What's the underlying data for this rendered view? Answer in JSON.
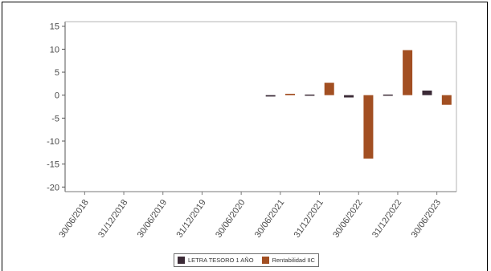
{
  "chart_data": {
    "type": "bar",
    "categories": [
      "30/06/2018",
      "31/12/2018",
      "30/06/2019",
      "31/12/2019",
      "30/06/2020",
      "30/06/2021",
      "31/12/2021",
      "30/06/2022",
      "31/12/2022",
      "30/06/2023"
    ],
    "ylim": [
      -21,
      16
    ],
    "yticks": [
      15,
      10,
      5,
      0,
      -5,
      -10,
      -15,
      -20
    ],
    "grid": false,
    "legend_position": "bottom",
    "series": [
      {
        "name": "LETRA TESORO 1 AÑO",
        "color": "#3b2a36",
        "values": [
          null,
          null,
          null,
          null,
          null,
          -0.3,
          -0.2,
          -0.5,
          -0.1,
          1.0
        ]
      },
      {
        "name": "Rentabilidad IIC",
        "color": "#a24f22",
        "values": [
          null,
          null,
          null,
          null,
          null,
          0.3,
          2.7,
          -13.8,
          9.8,
          -2.1
        ]
      }
    ]
  }
}
